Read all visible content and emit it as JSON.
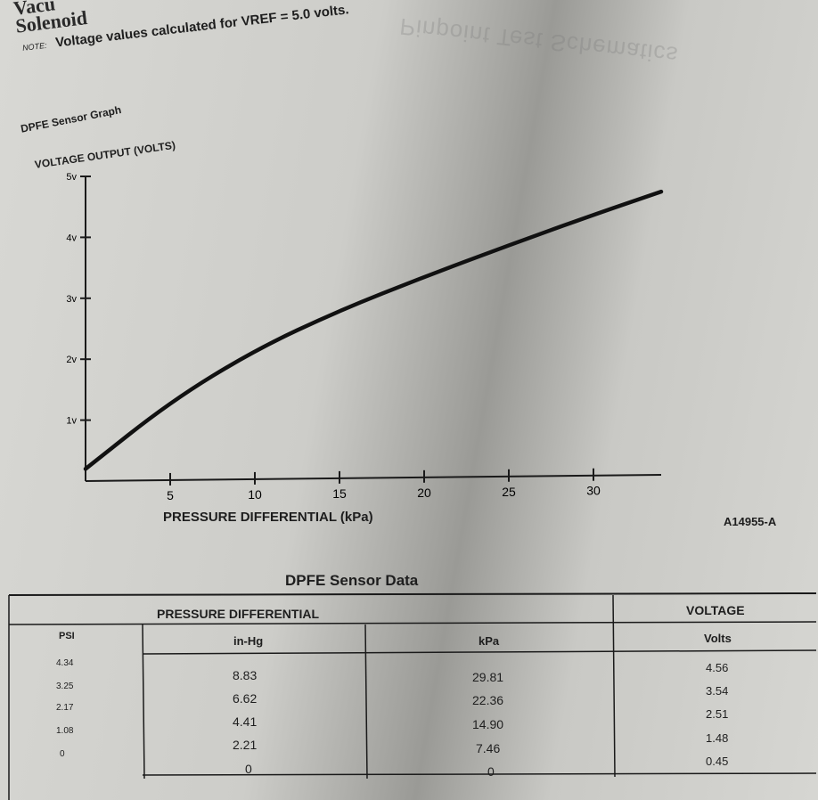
{
  "header": {
    "title_line1": "Vacu",
    "title_line2": "Solenoid",
    "ghost_text": "Pinpoint Test Schematics"
  },
  "note": {
    "label": "NOTE:",
    "text": "Voltage values calculated for VREF = 5.0 volts."
  },
  "graph": {
    "title": "DPFE Sensor Graph",
    "figure_ref": "A14955-A"
  },
  "chart_data": {
    "type": "line",
    "title": "DPFE Sensor Graph",
    "xlabel": "PRESSURE DIFFERENTIAL    (kPa)",
    "ylabel": "VOLTAGE OUTPUT (VOLTS)",
    "x_ticks": [
      "5",
      "10",
      "15",
      "20",
      "25",
      "30"
    ],
    "y_ticks": [
      "1v",
      "2v",
      "3v",
      "4v",
      "5v"
    ],
    "xlim": [
      0,
      34
    ],
    "ylim": [
      0,
      5
    ],
    "grid": false,
    "series": [
      {
        "x": [
          0,
          5,
          10,
          15,
          20,
          25,
          30,
          34
        ],
        "y": [
          0.2,
          1.3,
          2.15,
          2.8,
          3.35,
          3.87,
          4.37,
          4.75
        ]
      }
    ]
  },
  "table": {
    "title": "DPFE Sensor Data",
    "group_header_pressure": "PRESSURE DIFFERENTIAL",
    "group_header_voltage": "VOLTAGE",
    "col_psi": "PSI",
    "col_inhg": "in-Hg",
    "col_kpa": "kPa",
    "col_volts": "Volts",
    "psi": [
      "4.34",
      "3.25",
      "2.17",
      "1.08",
      "0"
    ],
    "inhg": [
      "8.83",
      "6.62",
      "4.41",
      "2.21",
      "0"
    ],
    "kpa": [
      "29.81",
      "22.36",
      "14.90",
      "7.46",
      "0"
    ],
    "volts": [
      "4.56",
      "3.54",
      "2.51",
      "1.48",
      "0.45"
    ]
  }
}
